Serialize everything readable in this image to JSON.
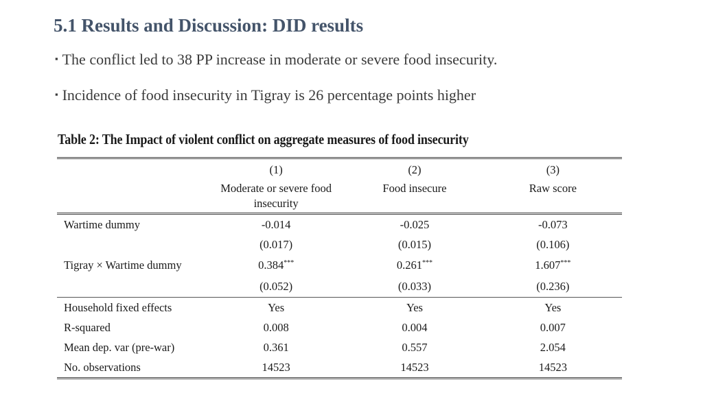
{
  "slide": {
    "title": "5.1 Results and Discussion: DID results",
    "bullets": [
      "The conflict led to 38 PP increase in moderate or severe food insecurity.",
      "Incidence of food insecurity in Tigray is 26 percentage points higher"
    ],
    "bullet_symbol": "▪"
  },
  "table": {
    "caption": "Table 2: The Impact of violent conflict on aggregate measures of food insecurity",
    "column_numbers": [
      "(1)",
      "(2)",
      "(3)"
    ],
    "column_names": [
      "Moderate or severe food insecurity",
      "Food insecure",
      "Raw score"
    ],
    "rows": [
      {
        "label": "Wartime dummy",
        "values": [
          "-0.014",
          "-0.025",
          "-0.073"
        ]
      },
      {
        "label": "",
        "values": [
          "(0.017)",
          "(0.015)",
          "(0.106)"
        ]
      },
      {
        "label": "Tigray × Wartime dummy",
        "values": [
          "0.384",
          "0.261",
          "1.607"
        ],
        "stars": [
          "***",
          "***",
          "***"
        ]
      },
      {
        "label": "",
        "values": [
          "(0.052)",
          "(0.033)",
          "(0.236)"
        ]
      },
      {
        "label": "Household fixed effects",
        "values": [
          "Yes",
          "Yes",
          "Yes"
        ]
      },
      {
        "label": "R-squared",
        "values": [
          "0.008",
          "0.004",
          "0.007"
        ]
      },
      {
        "label": "Mean dep. var (pre-war)",
        "values": [
          "0.361",
          "0.557",
          "2.054"
        ]
      },
      {
        "label": "No. observations",
        "values": [
          "14523",
          "14523",
          "14523"
        ]
      }
    ]
  }
}
